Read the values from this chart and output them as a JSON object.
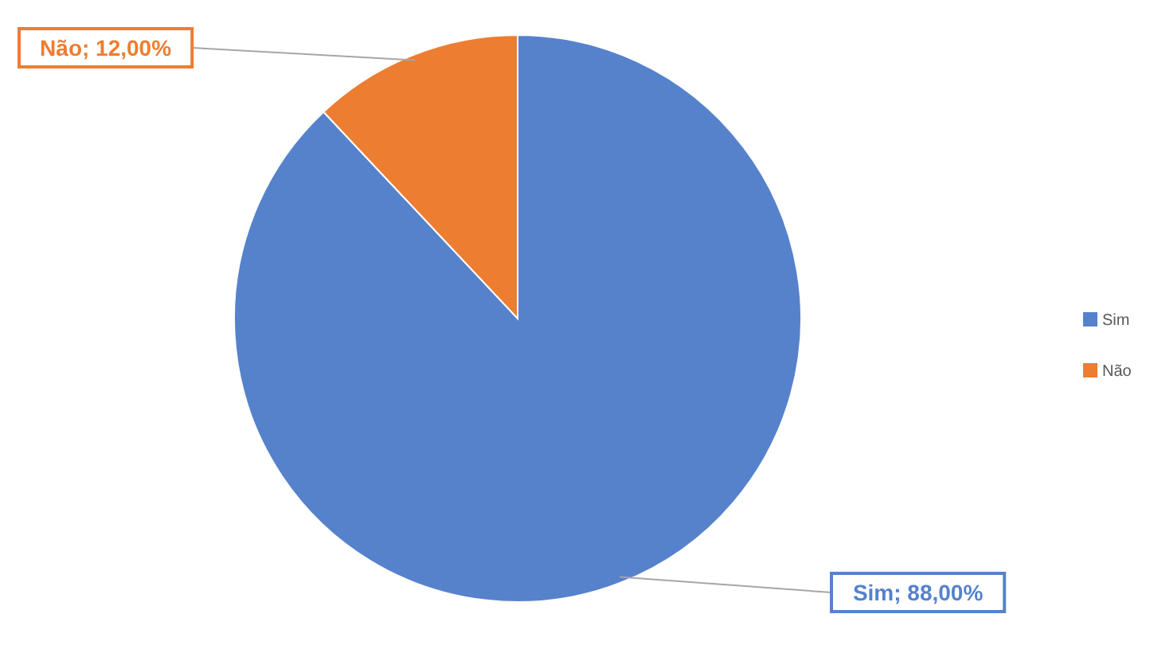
{
  "chart_data": {
    "type": "pie",
    "categories": [
      "Sim",
      "Não"
    ],
    "values": [
      88,
      12
    ],
    "colors": [
      "#5682cc",
      "#ed7d31"
    ],
    "value_labels": [
      "Sim; 88,00%",
      "Não; 12,00%"
    ],
    "legend": "right"
  }
}
